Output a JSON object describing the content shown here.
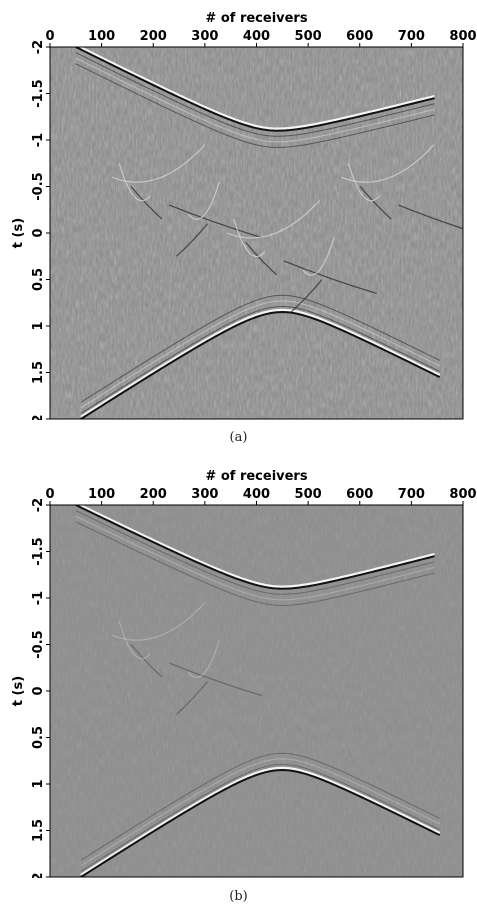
{
  "chart_data": [
    {
      "type": "heatmap",
      "caption": "(a)",
      "xlabel": "# of receivers",
      "ylabel": "t (s)",
      "xlim": [
        0,
        800
      ],
      "ylim": [
        -2,
        2
      ],
      "xticks": [
        "0",
        "100",
        "200",
        "300",
        "400",
        "500",
        "600",
        "700",
        "800"
      ],
      "yticks": [
        "-2",
        "-1.5",
        "-1",
        "-0.5",
        "0",
        "0.5",
        "1",
        "1.5",
        "2"
      ],
      "colormap": "grayscale",
      "features": {
        "upper_event": "hyperbolic event with apex near receiver 440 at t = -1.1 s, reaching t = -2 s near receiver 50 and t = -1.45 s near receiver 740",
        "lower_event": "hyperbolic event with apex near receiver 450 at t = 0.85 s, reaching t = 2 s near receiver 60 and t = 1.55 s near receiver 750",
        "center": "dense crossing noise between t = -0.5 s and t = 0.5 s"
      }
    },
    {
      "type": "heatmap",
      "caption": "(b)",
      "xlabel": "# of receivers",
      "ylabel": "t (s)",
      "xlim": [
        0,
        800
      ],
      "ylim": [
        -2,
        2
      ],
      "xticks": [
        "0",
        "100",
        "200",
        "300",
        "400",
        "500",
        "600",
        "700",
        "800"
      ],
      "yticks": [
        "-2",
        "-1.5",
        "-1",
        "-0.5",
        "0",
        "0.5",
        "1",
        "1.5",
        "2"
      ],
      "colormap": "grayscale",
      "features": {
        "upper_event": "hyperbolic event with apex near receiver 450 at t = -1.1 s, reaching t = -2 s near receiver 50 and t = -1.5 s near receiver 740",
        "lower_event": "hyperbolic event with apex near receiver 450 at t = 0.85 s, reaching t = 2 s near receiver 60 and t = 1.55 s near receiver 750",
        "center": "largely attenuated noise between the two events"
      }
    }
  ]
}
